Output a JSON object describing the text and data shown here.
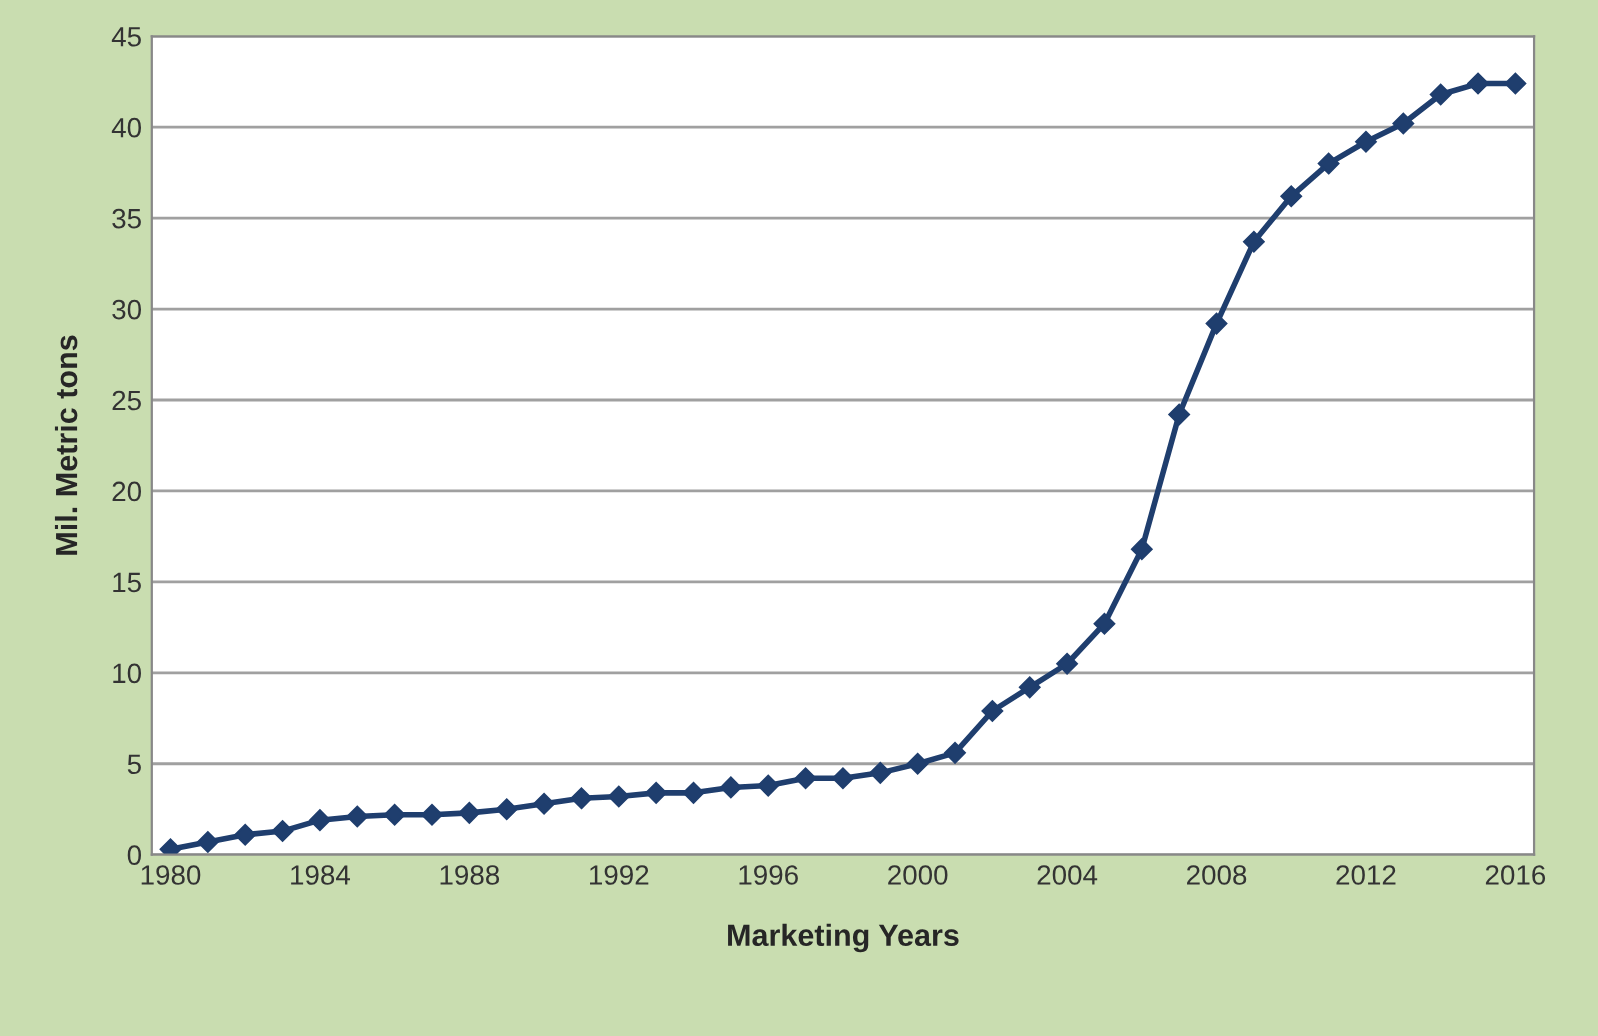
{
  "chart_data": {
    "type": "line",
    "xlabel": "Marketing Years",
    "ylabel": "Mil. Metric tons",
    "x": [
      1980,
      1981,
      1982,
      1983,
      1984,
      1985,
      1986,
      1987,
      1988,
      1989,
      1990,
      1991,
      1992,
      1993,
      1994,
      1995,
      1996,
      1997,
      1998,
      1999,
      2000,
      2001,
      2002,
      2003,
      2004,
      2005,
      2006,
      2007,
      2008,
      2009,
      2010,
      2011,
      2012,
      2013,
      2014,
      2015,
      2016
    ],
    "series": [
      {
        "color": "#1f3e6e",
        "values": [
          0.3,
          0.7,
          1.1,
          1.3,
          1.9,
          2.1,
          2.2,
          2.2,
          2.3,
          2.5,
          2.8,
          3.1,
          3.2,
          3.4,
          3.4,
          3.7,
          3.8,
          4.2,
          4.2,
          4.5,
          5.0,
          5.6,
          7.9,
          9.2,
          10.5,
          12.7,
          16.8,
          24.2,
          29.2,
          33.7,
          36.2,
          38.0,
          39.2,
          40.2,
          41.8,
          42.4,
          42.4
        ]
      }
    ],
    "xlim": [
      1979.5,
      2016.5
    ],
    "xticks": [
      1980,
      1984,
      1988,
      1992,
      1996,
      2000,
      2004,
      2008,
      2012,
      2016
    ],
    "ylim": [
      0,
      45
    ],
    "yticks": [
      0,
      5,
      10,
      15,
      20,
      25,
      30,
      35,
      40,
      45
    ],
    "grid": "y",
    "marker": "diamond",
    "line_style": "solid"
  }
}
